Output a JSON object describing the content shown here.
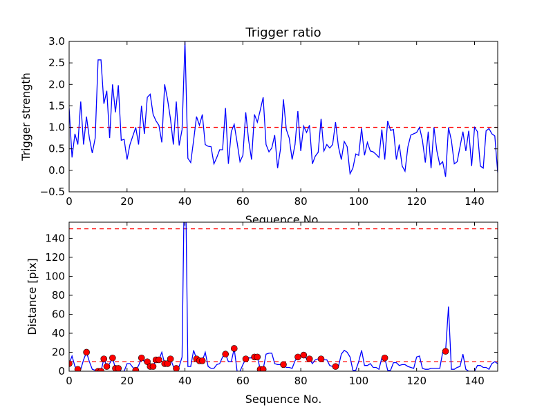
{
  "chart_data": [
    {
      "type": "line",
      "title": "Trigger ratio",
      "xlabel": "Sequence No.",
      "ylabel": "Trigger strength",
      "xlim": [
        0,
        148
      ],
      "ylim": [
        -0.5,
        3.0
      ],
      "xticks": [
        0,
        20,
        40,
        60,
        80,
        100,
        120,
        140
      ],
      "yticks": [
        -0.5,
        0.0,
        0.5,
        1.0,
        1.5,
        2.0,
        2.5,
        3.0
      ],
      "ytick_labels": [
        "−0.5",
        "0.0",
        "0.5",
        "1.0",
        "1.5",
        "2.0",
        "2.5",
        "3.0"
      ],
      "threshold": 1.0,
      "colors": {
        "line": "#0000ff",
        "threshold": "#ff0000"
      },
      "values": [
        1.45,
        0.3,
        0.85,
        0.6,
        1.6,
        0.6,
        1.25,
        0.75,
        0.4,
        0.75,
        2.57,
        2.57,
        1.55,
        1.85,
        0.75,
        2.0,
        1.35,
        1.98,
        0.7,
        0.72,
        0.25,
        0.6,
        0.8,
        1.0,
        0.6,
        1.5,
        0.85,
        1.7,
        1.77,
        1.3,
        1.15,
        1.05,
        0.65,
        2.0,
        1.65,
        1.2,
        0.6,
        1.6,
        0.58,
        0.95,
        3.0,
        0.28,
        0.18,
        0.7,
        1.25,
        1.05,
        1.3,
        0.6,
        0.56,
        0.55,
        0.15,
        0.3,
        0.48,
        0.48,
        1.45,
        0.15,
        0.9,
        1.07,
        0.65,
        0.2,
        0.35,
        1.35,
        0.7,
        0.25,
        1.3,
        1.12,
        1.4,
        1.7,
        0.6,
        0.43,
        0.52,
        0.82,
        0.05,
        0.5,
        1.65,
        0.95,
        0.75,
        0.25,
        0.6,
        1.38,
        0.45,
        1.03,
        0.88,
        1.05,
        0.15,
        0.33,
        0.42,
        1.2,
        0.45,
        0.6,
        0.52,
        0.6,
        1.12,
        0.55,
        0.25,
        0.67,
        0.55,
        -0.08,
        0.05,
        0.38,
        0.35,
        0.98,
        0.35,
        0.65,
        0.45,
        0.43,
        0.37,
        0.3,
        0.95,
        0.25,
        1.15,
        0.93,
        0.95,
        0.25,
        0.6,
        0.1,
        -0.02,
        0.55,
        0.82,
        0.85,
        0.88,
        1.0,
        0.7,
        0.18,
        0.9,
        0.05,
        1.0,
        0.45,
        0.13,
        0.2,
        -0.15,
        1.0,
        0.7,
        0.15,
        0.2,
        0.55,
        0.9,
        0.45,
        0.92,
        0.1,
        1.0,
        0.9,
        0.1,
        0.05,
        0.92,
        0.97,
        0.85,
        0.8,
        -0.05
      ]
    },
    {
      "type": "line",
      "title": "",
      "xlabel": "Sequence No.",
      "ylabel": "Distance [pix]",
      "xlim": [
        0,
        148
      ],
      "ylim": [
        0,
        157
      ],
      "xticks": [
        0,
        20,
        40,
        60,
        80,
        100,
        120,
        140
      ],
      "yticks": [
        0,
        20,
        40,
        60,
        80,
        100,
        120,
        140
      ],
      "thresholds": [
        10,
        150
      ],
      "colors": {
        "line": "#0000ff",
        "threshold": "#ff0000",
        "marker": "#ff0000"
      },
      "values": [
        8,
        16,
        5,
        2,
        2,
        12,
        20,
        10,
        2,
        1,
        0,
        0,
        13,
        5,
        8,
        14,
        3,
        3,
        0,
        0,
        8,
        8,
        4,
        1,
        6,
        14,
        10,
        10,
        5,
        5,
        12,
        12,
        20,
        8,
        8,
        13,
        5,
        3,
        5,
        15,
        250,
        5,
        5,
        22,
        13,
        11,
        11,
        20,
        5,
        3,
        3,
        7,
        8,
        15,
        18,
        10,
        10,
        24,
        0,
        0,
        7,
        13,
        14,
        14,
        15,
        15,
        2,
        2,
        18,
        19,
        19,
        8,
        7,
        7,
        7,
        4,
        4,
        3,
        11,
        15,
        17,
        17,
        13,
        13,
        8,
        12,
        13,
        13,
        12,
        12,
        6,
        5,
        5,
        5,
        18,
        22,
        20,
        15,
        1,
        1,
        10,
        22,
        6,
        6,
        8,
        4,
        4,
        2,
        14,
        14,
        1,
        1,
        9,
        9,
        6,
        7,
        7,
        5,
        4,
        3,
        15,
        16,
        3,
        2,
        2,
        3,
        3,
        3,
        3,
        20,
        21,
        68,
        2,
        2,
        4,
        5,
        18,
        2,
        0,
        0,
        0,
        6,
        6,
        4,
        4,
        2,
        8,
        10,
        8
      ],
      "marker_indices": [
        0,
        3,
        6,
        10,
        11,
        12,
        13,
        15,
        16,
        17,
        23,
        25,
        27,
        28,
        29,
        30,
        31,
        33,
        34,
        35,
        37,
        44,
        45,
        46,
        54,
        57,
        61,
        64,
        65,
        66,
        67,
        74,
        79,
        81,
        83,
        87,
        92,
        109,
        130
      ]
    }
  ]
}
